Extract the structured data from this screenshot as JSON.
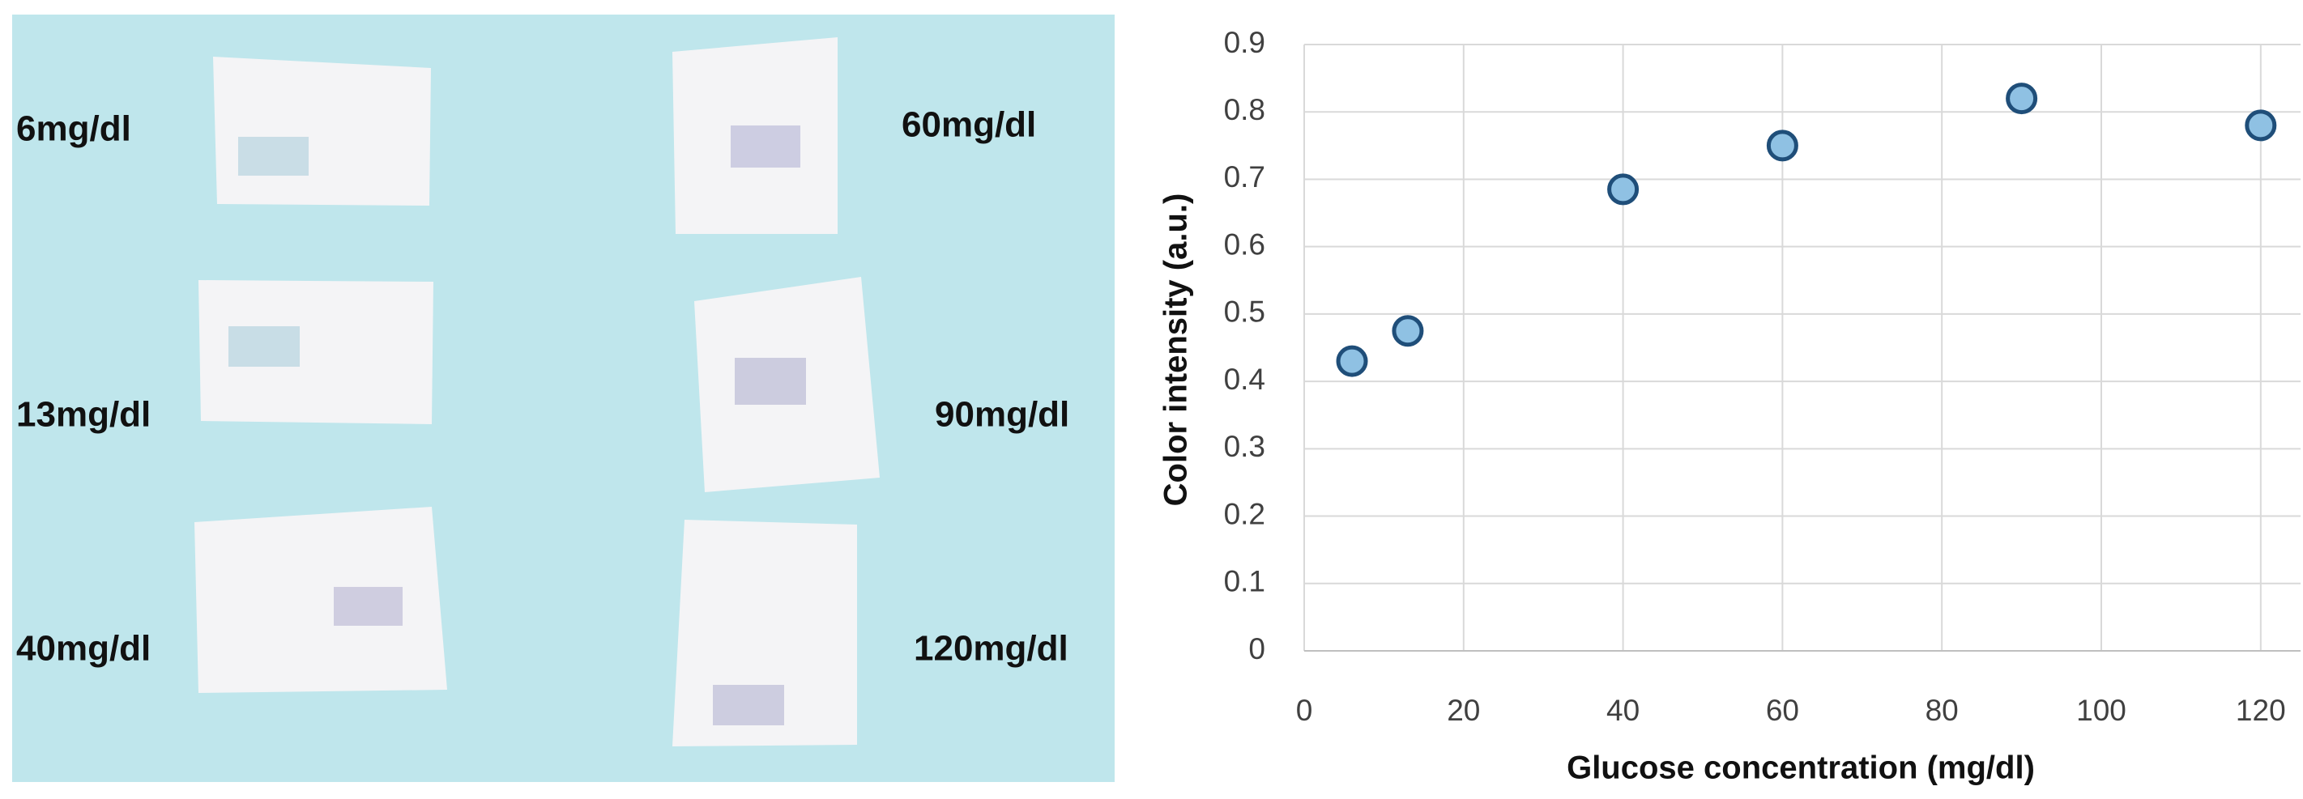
{
  "strip_labels": [
    "6mg/dl",
    "60mg/dl",
    "13mg/dl",
    "90mg/dl",
    "40mg/dl",
    "120mg/dl"
  ],
  "chart_data": {
    "type": "scatter",
    "x_label": "Glucose concentration (mg/dl)",
    "y_label": "Color intensity  (a.u.)",
    "x": [
      6,
      13,
      40,
      60,
      90,
      120
    ],
    "series": [
      {
        "color": "#8fc1e3",
        "values": [
          0.43,
          0.475,
          0.685,
          0.75,
          0.82,
          0.78
        ]
      }
    ],
    "xlim": [
      0,
      125
    ],
    "xticks": [
      0,
      20,
      40,
      60,
      80,
      100,
      120
    ],
    "ylim": [
      0,
      0.9
    ],
    "yticks": [
      0,
      0.1,
      0.2,
      0.3,
      0.4,
      0.5,
      0.6,
      0.7,
      0.8,
      0.9
    ],
    "grid": true
  }
}
